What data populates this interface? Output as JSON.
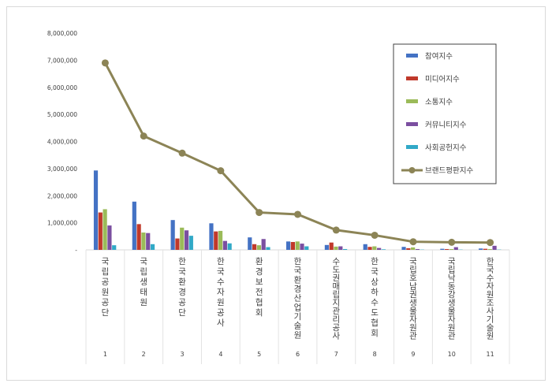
{
  "chart_data": {
    "type": "bar",
    "title": "",
    "xlabel": "",
    "ylabel": "",
    "ylim": [
      0,
      8000000
    ],
    "y_ticks": [
      "-",
      "1,000,000",
      "2,000,000",
      "3,000,000",
      "4,000,000",
      "5,000,000",
      "6,000,000",
      "7,000,000",
      "8,000,000"
    ],
    "categories": [
      "1",
      "2",
      "3",
      "4",
      "5",
      "6",
      "7",
      "8",
      "9",
      "10",
      "11"
    ],
    "category_names": [
      "국립공원공단",
      "국립생태원",
      "한국환경공단",
      "한국수자원공사",
      "환경보전협회",
      "한국환경산업기술원",
      "수도권매립지관리공사",
      "한국상하수도협회",
      "국립호남권생물자원관",
      "국립낙동강생물자원관",
      "한국수자원조사기술원"
    ],
    "grid": false,
    "legend_position": "right",
    "series": [
      {
        "name": "참여지수",
        "kind": "bar",
        "color": "#4472c4",
        "values": [
          2930000,
          1780000,
          1100000,
          980000,
          460000,
          310000,
          180000,
          210000,
          110000,
          40000,
          50000
        ]
      },
      {
        "name": "미디어지수",
        "kind": "bar",
        "color": "#c0392b",
        "values": [
          1380000,
          950000,
          420000,
          680000,
          210000,
          290000,
          270000,
          110000,
          60000,
          30000,
          40000
        ]
      },
      {
        "name": "소통지수",
        "kind": "bar",
        "color": "#9bbb59",
        "values": [
          1500000,
          640000,
          820000,
          700000,
          170000,
          310000,
          120000,
          130000,
          90000,
          30000,
          30000
        ]
      },
      {
        "name": "커뮤니티지수",
        "kind": "bar",
        "color": "#7b4fa0",
        "values": [
          900000,
          620000,
          720000,
          330000,
          400000,
          230000,
          130000,
          70000,
          30000,
          100000,
          150000
        ]
      },
      {
        "name": "사회공헌지수",
        "kind": "bar",
        "color": "#31a9c7",
        "values": [
          170000,
          210000,
          520000,
          240000,
          100000,
          130000,
          30000,
          20000,
          10000,
          10000,
          10000
        ]
      },
      {
        "name": "브랜드평판지수",
        "kind": "line",
        "color": "#8c8456",
        "values": [
          6900000,
          4200000,
          3570000,
          2920000,
          1380000,
          1310000,
          730000,
          540000,
          300000,
          280000,
          270000
        ]
      }
    ]
  }
}
